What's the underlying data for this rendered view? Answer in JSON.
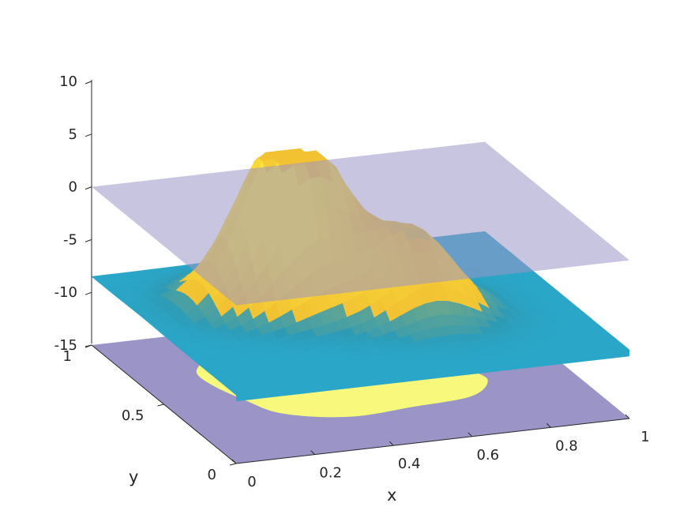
{
  "chart_data": {
    "type": "surface3d",
    "title": "",
    "xlabel": "x",
    "ylabel": "y",
    "zlabel": "",
    "xlim": [
      0,
      1
    ],
    "ylim": [
      0,
      1
    ],
    "zlim": [
      -15,
      10
    ],
    "x_ticks": [
      0,
      0.2,
      0.4,
      0.6,
      0.8,
      1
    ],
    "x_tick_labels": [
      "0",
      "0.2",
      "0.4",
      "0.6",
      "0.8",
      "1"
    ],
    "y_ticks": [
      0,
      0.5,
      1
    ],
    "y_tick_labels": [
      "0",
      "0.5",
      "1"
    ],
    "z_ticks": [
      -15,
      -10,
      -5,
      0,
      5,
      10
    ],
    "z_tick_labels": [
      "-15",
      "-10",
      "-5",
      "0",
      "5",
      "10"
    ],
    "grid": false,
    "zero_plane": {
      "z": 0,
      "color": "#9a95c6",
      "opacity": 0.55
    },
    "surface": {
      "base_level": -8.5,
      "peak_level": 5.5,
      "colormap": "parula",
      "colors": {
        "low": "#2aa6c8",
        "mid": "#2e9bb5",
        "high": "#f2c233",
        "top": "#fbe43a"
      },
      "peaks": [
        {
          "x": 0.42,
          "y": 0.6,
          "height": 5.5
        },
        {
          "x": 0.3,
          "y": 0.65,
          "height": 2.8
        },
        {
          "x": 0.62,
          "y": 0.45,
          "height": 0.6
        }
      ]
    },
    "region_map": {
      "z": -15,
      "inside_color": "#f8f87c",
      "outside_color": "#9a95c6",
      "boundary": [
        [
          0.16,
          0.71
        ],
        [
          0.22,
          0.79
        ],
        [
          0.31,
          0.8
        ],
        [
          0.37,
          0.72
        ],
        [
          0.47,
          0.66
        ],
        [
          0.55,
          0.57
        ],
        [
          0.66,
          0.55
        ],
        [
          0.76,
          0.5
        ],
        [
          0.79,
          0.41
        ],
        [
          0.71,
          0.3
        ],
        [
          0.55,
          0.27
        ],
        [
          0.38,
          0.25
        ],
        [
          0.24,
          0.33
        ],
        [
          0.19,
          0.47
        ],
        [
          0.16,
          0.6
        ]
      ]
    }
  }
}
